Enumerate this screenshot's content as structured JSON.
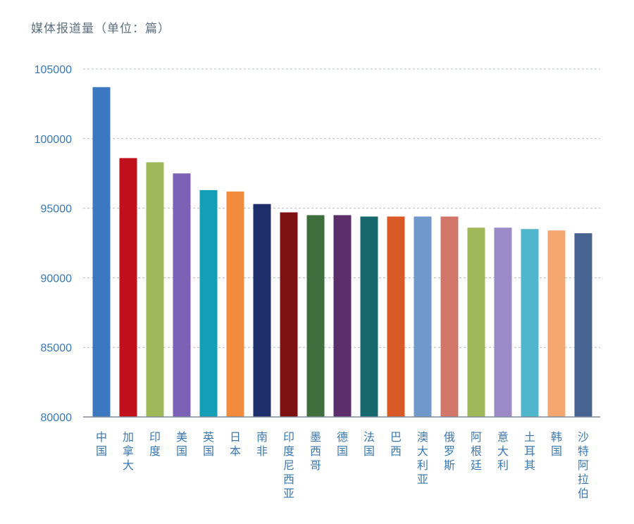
{
  "chart_data": {
    "type": "bar",
    "title": "媒体报道量（单位：篇）",
    "xlabel": "",
    "ylabel": "",
    "ylim": [
      80000,
      105000
    ],
    "yticks": [
      80000,
      85000,
      90000,
      95000,
      100000,
      105000
    ],
    "grid": "horizontal-dashed",
    "categories": [
      "中国",
      "加拿大",
      "印度",
      "美国",
      "英国",
      "日本",
      "南非",
      "印度尼西亚",
      "墨西哥",
      "德国",
      "法国",
      "巴西",
      "澳大利亚",
      "俄罗斯",
      "阿根廷",
      "意大利",
      "土耳其",
      "韩国",
      "沙特阿拉伯"
    ],
    "values": [
      103700,
      98600,
      98300,
      97500,
      96300,
      96200,
      95300,
      94700,
      94500,
      94500,
      94400,
      94400,
      94400,
      94400,
      93600,
      93600,
      93500,
      93400,
      93200
    ],
    "colors": [
      "#3c78c0",
      "#c0101c",
      "#9fb85a",
      "#7c62b6",
      "#139fb5",
      "#f28c3c",
      "#1f2f6b",
      "#7e1212",
      "#3f6f3d",
      "#5c2e6c",
      "#16686e",
      "#d95a27",
      "#6f98cb",
      "#d2766a",
      "#9fb85a",
      "#9c8ac7",
      "#4fb6cd",
      "#f4a870",
      "#476391"
    ]
  }
}
